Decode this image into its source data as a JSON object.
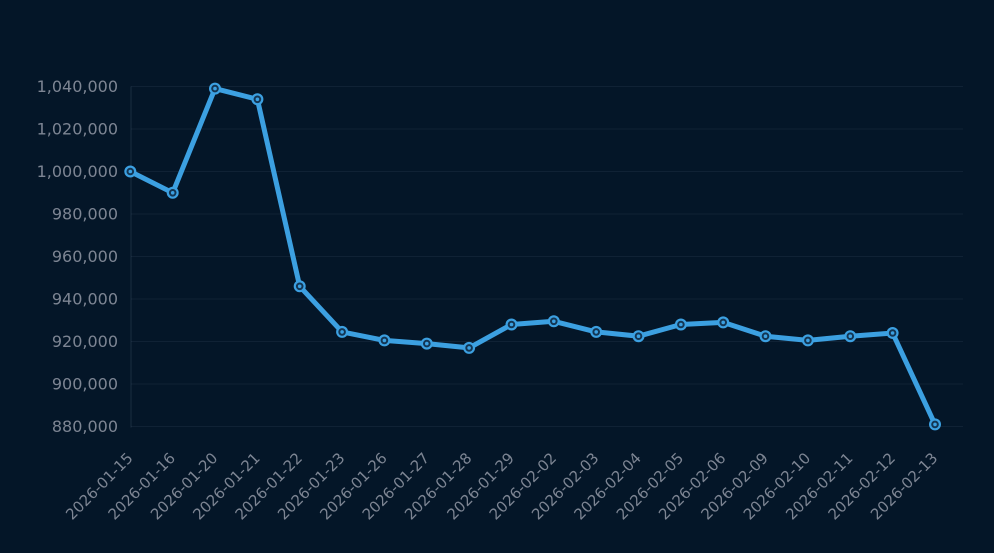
{
  "page": {
    "background_color": "#041628"
  },
  "chart_data": {
    "type": "line",
    "title": "",
    "xlabel": "",
    "ylabel": "",
    "legend": false,
    "grid": true,
    "x_tick_rotation": -45,
    "x": [
      "2026-01-15",
      "2026-01-16",
      "2026-01-20",
      "2026-01-21",
      "2026-01-22",
      "2026-01-23",
      "2026-01-26",
      "2026-01-27",
      "2026-01-28",
      "2026-01-29",
      "2026-02-02",
      "2026-02-03",
      "2026-02-04",
      "2026-02-05",
      "2026-02-06",
      "2026-02-09",
      "2026-02-10",
      "2026-02-11",
      "2026-02-12",
      "2026-02-13"
    ],
    "series": [
      {
        "name": "series-1",
        "color": "#3ca0e1",
        "values": [
          1000000,
          990000,
          1039000,
          1034000,
          946000,
          924500,
          920500,
          919000,
          917000,
          928000,
          929500,
          924500,
          922500,
          928000,
          929000,
          922500,
          920500,
          922500,
          924000,
          881000
        ]
      }
    ],
    "ylim": [
      880000,
      1040000
    ],
    "y_ticks": [
      880000,
      900000,
      920000,
      940000,
      960000,
      980000,
      1000000,
      1020000,
      1040000
    ],
    "y_tick_labels": [
      "880,000",
      "900,000",
      "920,000",
      "940,000",
      "960,000",
      "980,000",
      "1,000,000",
      "1,020,000",
      "1,040,000"
    ],
    "colors": {
      "background": "#041628",
      "line": "#3ca0e1",
      "marker_ring": "#133553",
      "axis_label": "#7d8593",
      "grid_line": "rgba(130, 150, 180, 0.10)",
      "axis_line": "rgba(130, 150, 180, 0.18)"
    }
  }
}
